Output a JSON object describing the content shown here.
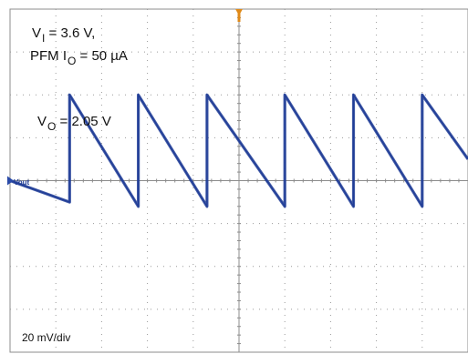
{
  "chart_data": {
    "type": "line",
    "title": "",
    "xlabel": "",
    "ylabel": "",
    "x_divisions": 10,
    "y_divisions": 8,
    "grid": true,
    "ylim": [
      -80,
      80
    ],
    "annotations": {
      "line1_prefix": "V",
      "line1_sub": "I",
      "line1_suffix": " = 3.6 V,",
      "line2_prefix": "PFM  I",
      "line2_sub": "O",
      "line2_suffix": " = 50 µA",
      "line3_prefix": "V",
      "line3_sub": "O",
      "line3_suffix": " = 2.05 V",
      "scale": "20 mV/div"
    },
    "series": [
      {
        "name": "Vout",
        "color": "#1f3c96",
        "x": [
          0.0,
          1.3,
          1.3,
          2.8,
          2.8,
          4.3,
          4.3,
          6.0,
          6.0,
          7.5,
          7.5,
          9.0,
          9.0,
          10.0
        ],
        "y": [
          0,
          -10,
          40,
          -12,
          40,
          -12,
          40,
          -12,
          40,
          -12,
          40,
          -12,
          40,
          10
        ]
      }
    ],
    "colors": {
      "trace": "#1f3c96",
      "grid": "#9a9a9a",
      "trigger": "#e08a18",
      "marker": "#2a4aa8"
    }
  }
}
